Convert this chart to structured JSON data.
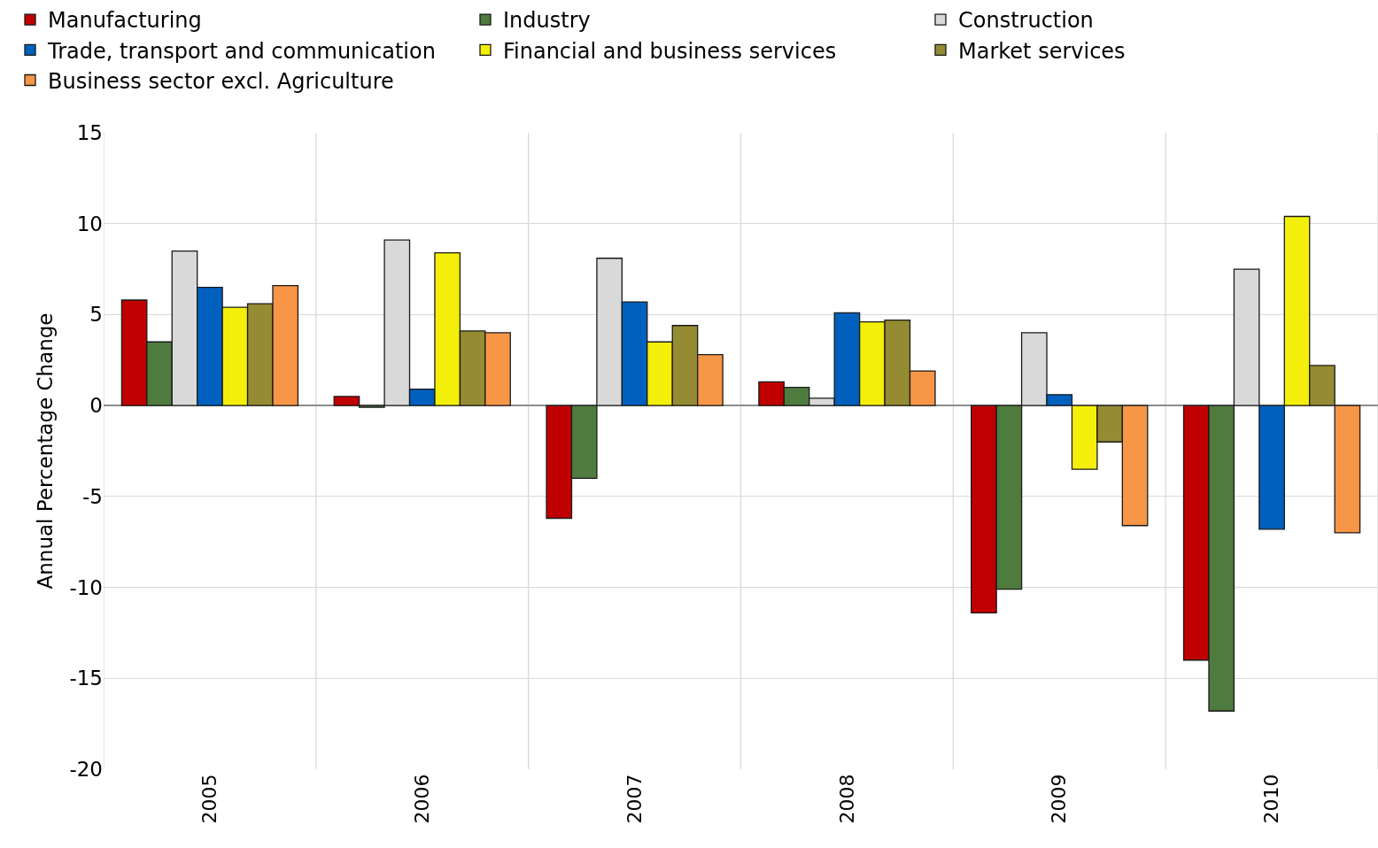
{
  "chart_data": {
    "type": "bar",
    "ylabel": "Annual Percentage Change",
    "categories": [
      "2005",
      "2006",
      "2007",
      "2008",
      "2009",
      "2010"
    ],
    "series": [
      {
        "name": "Manufacturing",
        "color": "#c00000",
        "values": [
          5.8,
          0.5,
          -6.2,
          1.3,
          -11.4,
          -14.0
        ]
      },
      {
        "name": "Industry",
        "color": "#4e7b3e",
        "values": [
          3.5,
          -0.1,
          -4.0,
          1.0,
          -10.1,
          -16.8
        ]
      },
      {
        "name": "Construction",
        "color": "#d9d9d9",
        "values": [
          8.5,
          9.1,
          8.1,
          0.4,
          4.0,
          7.5
        ]
      },
      {
        "name": "Trade, transport and communication",
        "color": "#0060be",
        "values": [
          6.5,
          0.9,
          5.7,
          5.1,
          0.6,
          -6.8
        ]
      },
      {
        "name": "Financial and business services",
        "color": "#f4ef0a",
        "values": [
          5.4,
          8.4,
          3.5,
          4.6,
          -3.5,
          10.4
        ]
      },
      {
        "name": "Market services",
        "color": "#958b32",
        "values": [
          5.6,
          4.1,
          4.4,
          4.7,
          -2.0,
          2.2
        ]
      },
      {
        "name": "Business sector excl. Agriculture",
        "color": "#f79646",
        "values": [
          6.6,
          4.0,
          2.8,
          1.9,
          -6.6,
          -7.0
        ]
      }
    ],
    "ylim": [
      -20,
      15
    ],
    "yticks": [
      -20,
      -15,
      -10,
      -5,
      0,
      5,
      10,
      15
    ],
    "grid": true,
    "legend": "top"
  }
}
